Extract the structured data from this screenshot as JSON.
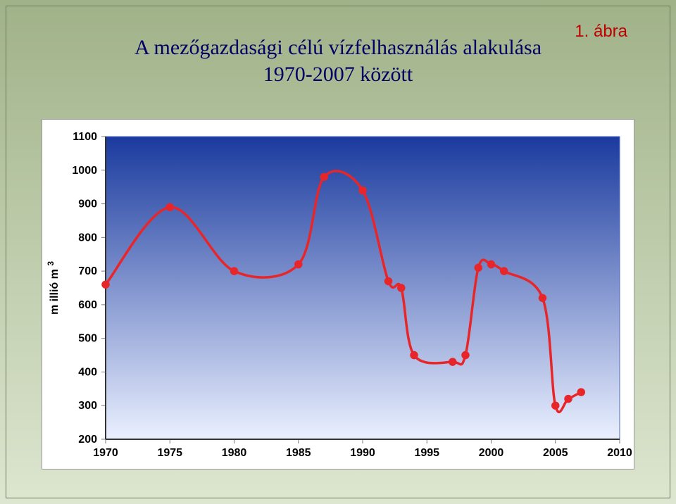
{
  "figure_label": "1. ábra",
  "title_line1": "A mezőgazdasági célú vízfelhasználás alakulása",
  "title_line2": "1970-2007 között",
  "slide": {
    "gradient_top": "#a0b288",
    "gradient_bottom": "#dde6d0",
    "border_color": "#6a7a58"
  },
  "chart": {
    "type": "line",
    "background_outer": "#ffffff",
    "plot_gradient_top": "#1a3a9e",
    "plot_gradient_bottom": "#eaf0ff",
    "plot_border": "#5068c8",
    "grid_color": "#777777",
    "axis_color": "#333333",
    "axis_font_size": 16,
    "axis_font_weight": "bold",
    "y_label": "m illió m 3",
    "xlim": [
      1970,
      2010
    ],
    "ylim": [
      200,
      1100
    ],
    "x_ticks": [
      1970,
      1975,
      1980,
      1985,
      1990,
      1995,
      2000,
      2005,
      2010
    ],
    "y_ticks": [
      200,
      300,
      400,
      500,
      600,
      700,
      800,
      900,
      1000,
      1100
    ],
    "series": {
      "color": "#e8262a",
      "line_width": 3.5,
      "marker_radius": 5,
      "marker_fill": "#e8262a",
      "marker_stroke": "#e8262a",
      "x": [
        1970,
        1975,
        1980,
        1985,
        1987,
        1990,
        1992,
        1993,
        1994,
        1997,
        1998,
        1999,
        2000,
        2001,
        2004,
        2005,
        2006,
        2007
      ],
      "y": [
        660,
        890,
        700,
        720,
        980,
        940,
        670,
        650,
        450,
        430,
        450,
        710,
        720,
        700,
        620,
        300,
        320,
        340
      ]
    }
  }
}
